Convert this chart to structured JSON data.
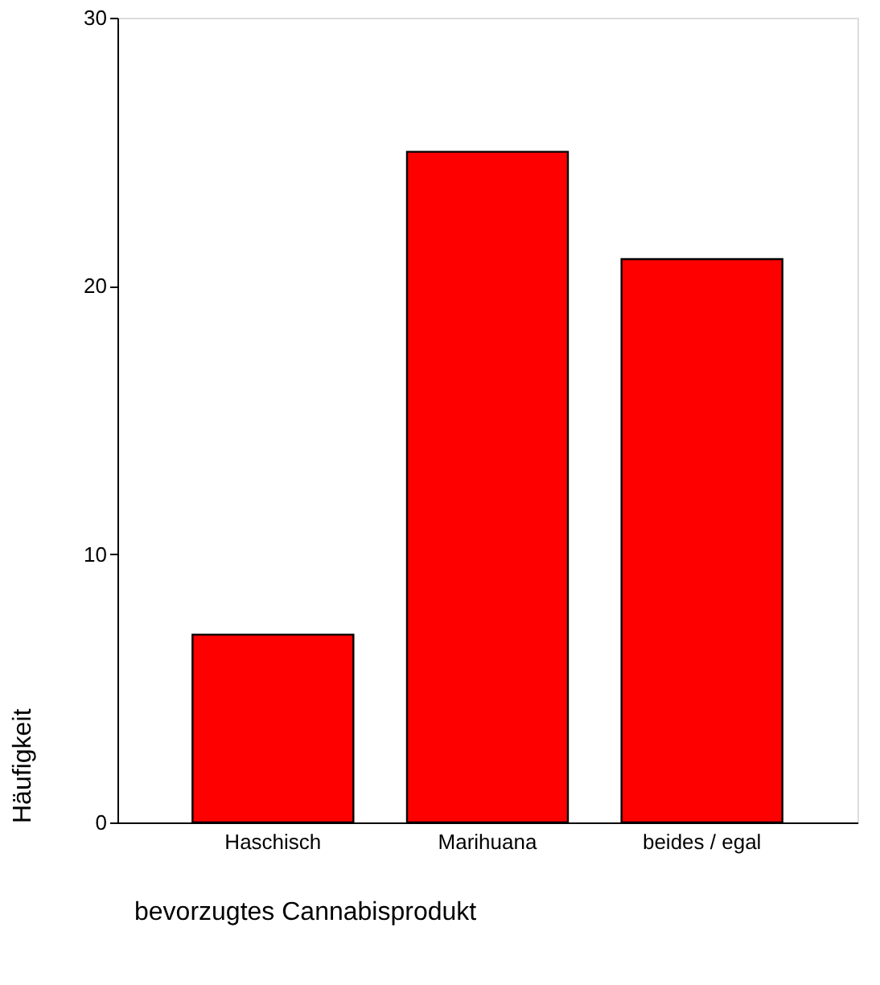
{
  "chart_data": {
    "type": "bar",
    "xlabel": "bevorzugtes Cannabisprodukt",
    "ylabel": "Häufigkeit",
    "categories": [
      "Haschisch",
      "Marihuana",
      "beides / egal"
    ],
    "values": [
      7,
      25,
      21
    ],
    "color": "#ff0000",
    "ylim": [
      0,
      30
    ],
    "yticks": [
      0,
      10,
      20,
      30
    ],
    "grid": false
  }
}
